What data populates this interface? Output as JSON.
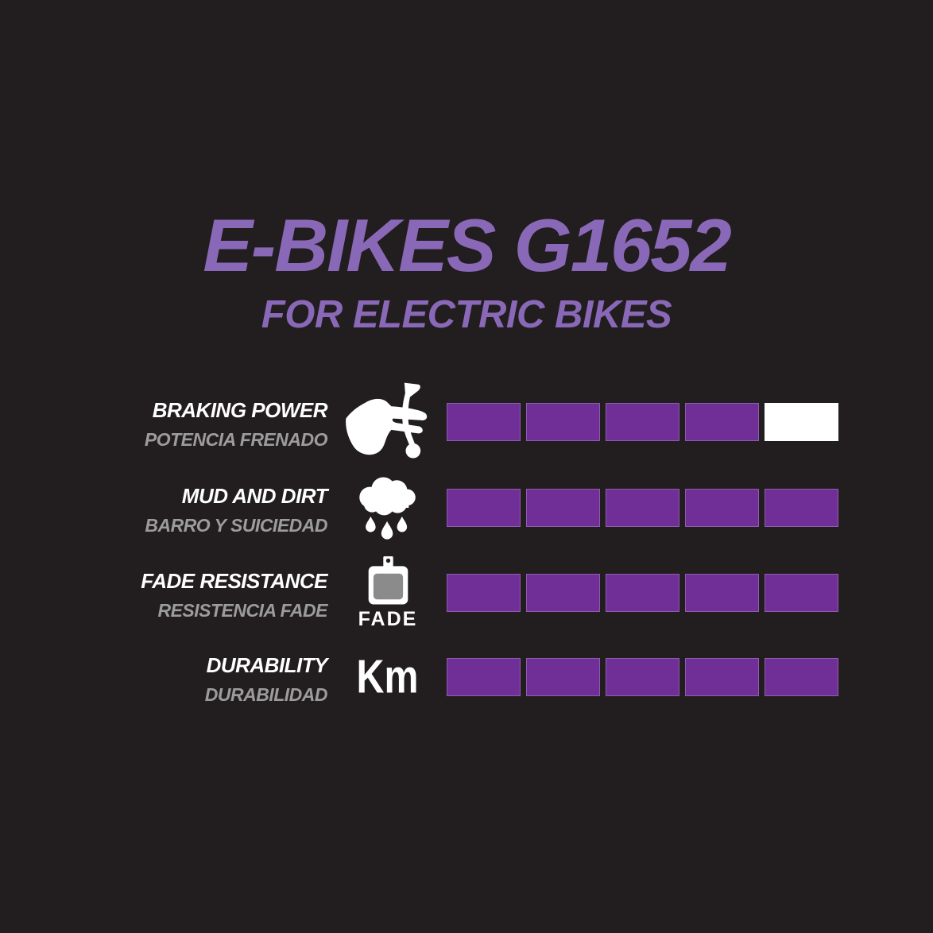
{
  "title": "E-BIKES G1652",
  "subtitle": "FOR ELECTRIC BIKES",
  "colors": {
    "background": "#221e1f",
    "heading_purple": "#8a68b8",
    "bar_filled_purple": "#6f2f96",
    "bar_empty_white": "#ffffff",
    "label_primary": "#ffffff",
    "label_secondary": "#9c9c9c",
    "pad_inner_gray": "#8b8b8b"
  },
  "chart_data": {
    "type": "bar",
    "title": "E-BIKES G1652",
    "subtitle": "FOR ELECTRIC BIKES",
    "max_rating": 5,
    "grid": false,
    "legend_position": "none",
    "categories": [
      "BRAKING POWER",
      "MUD AND DIRT",
      "FADE RESISTANCE",
      "DURABILITY"
    ],
    "values": [
      4,
      5,
      5,
      5
    ],
    "rows": [
      {
        "label_en": "BRAKING POWER",
        "label_es": "POTENCIA FRENADO",
        "icon": "brake-lever-hand-icon",
        "icon_caption": "",
        "icon_text": "",
        "value": 4
      },
      {
        "label_en": "MUD AND DIRT",
        "label_es": "BARRO Y SUICIEDAD",
        "icon": "rain-cloud-icon",
        "icon_caption": "",
        "icon_text": "",
        "value": 5
      },
      {
        "label_en": "FADE RESISTANCE",
        "label_es": "RESISTENCIA FADE",
        "icon": "brake-pad-icon",
        "icon_caption": "FADE",
        "icon_text": "",
        "value": 5
      },
      {
        "label_en": "DURABILITY",
        "label_es": "DURABILIDAD",
        "icon": "km-icon",
        "icon_caption": "",
        "icon_text": "Km",
        "value": 5
      }
    ]
  }
}
